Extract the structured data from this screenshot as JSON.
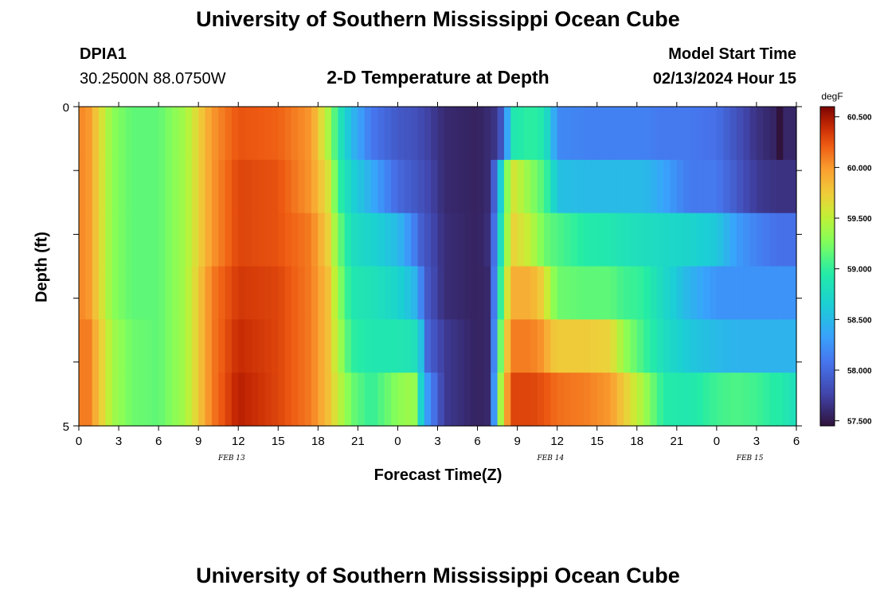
{
  "header": {
    "title_top": "University of Southern Mississippi Ocean Cube",
    "title_bottom": "University of Southern Mississippi Ocean Cube",
    "station_id": "DPIA1",
    "station_coords": "30.2500N  88.0750W",
    "chart_title": "2-D Temperature at Depth",
    "model_start_label": "Model Start Time",
    "model_start_value": "02/13/2024 Hour 15"
  },
  "chart_data": {
    "type": "heatmap",
    "title": "2-D Temperature at Depth",
    "xlabel": "Forecast Time(Z)",
    "ylabel": "Depth (ft)",
    "x_hours_range": [
      0,
      54
    ],
    "y_range": [
      0,
      5
    ],
    "y_ticks": [
      "0",
      "5"
    ],
    "x_tick_labels": [
      "0",
      "3",
      "6",
      "9",
      "12",
      "15",
      "18",
      "21",
      "0",
      "3",
      "6",
      "9",
      "12",
      "15",
      "18",
      "21",
      "0",
      "3",
      "6"
    ],
    "date_labels": [
      {
        "text": "FEB 13",
        "hour": 11.5
      },
      {
        "text": "FEB 14",
        "hour": 35.5
      },
      {
        "text": "FEB 15",
        "hour": 50.5
      }
    ],
    "colorbar": {
      "unit": "degF",
      "min": 57.45,
      "max": 60.6,
      "tick_labels": [
        "60.500",
        "60.000",
        "59.500",
        "59.000",
        "58.500",
        "58.000",
        "57.500"
      ],
      "tick_values": [
        60.5,
        60.0,
        59.5,
        59.0,
        58.5,
        58.0,
        57.5
      ]
    },
    "depth_bands": 6,
    "time_keys": [
      {
        "hour": 0,
        "t": [
          60.0,
          60.0,
          60.0,
          60.0,
          60.0,
          60.0
        ]
      },
      {
        "hour": 0.5,
        "t": [
          60.1,
          60.1,
          60.1,
          60.1,
          60.2,
          60.2
        ]
      },
      {
        "hour": 1.5,
        "t": [
          59.7,
          59.7,
          59.7,
          59.7,
          59.8,
          59.8
        ]
      },
      {
        "hour": 2.5,
        "t": [
          59.3,
          59.3,
          59.3,
          59.3,
          59.4,
          59.4
        ]
      },
      {
        "hour": 4,
        "t": [
          59.15,
          59.15,
          59.15,
          59.15,
          59.2,
          59.2
        ]
      },
      {
        "hour": 6,
        "t": [
          59.15,
          59.15,
          59.15,
          59.15,
          59.15,
          59.15
        ]
      },
      {
        "hour": 8,
        "t": [
          59.4,
          59.4,
          59.4,
          59.4,
          59.4,
          59.4
        ]
      },
      {
        "hour": 10,
        "t": [
          60.0,
          60.0,
          60.0,
          60.1,
          60.1,
          60.1
        ]
      },
      {
        "hour": 12,
        "t": [
          60.25,
          60.3,
          60.3,
          60.35,
          60.4,
          60.45
        ]
      },
      {
        "hour": 15,
        "t": [
          60.2,
          60.25,
          60.25,
          60.3,
          60.3,
          60.3
        ]
      },
      {
        "hour": 17.5,
        "t": [
          60.0,
          60.0,
          60.1,
          60.1,
          60.1,
          60.1
        ]
      },
      {
        "hour": 18.8,
        "t": [
          59.4,
          59.6,
          59.7,
          59.8,
          59.8,
          59.8
        ]
      },
      {
        "hour": 19.6,
        "t": [
          58.9,
          59.0,
          59.2,
          59.3,
          59.4,
          59.5
        ]
      },
      {
        "hour": 20.5,
        "t": [
          58.5,
          58.7,
          58.8,
          58.9,
          59.0,
          59.2
        ]
      },
      {
        "hour": 22,
        "t": [
          58.1,
          58.4,
          58.7,
          58.85,
          58.9,
          59.0
        ]
      },
      {
        "hour": 24,
        "t": [
          57.9,
          58.0,
          58.5,
          58.7,
          58.9,
          59.3
        ]
      },
      {
        "hour": 25.2,
        "t": [
          57.85,
          57.9,
          58.15,
          58.5,
          58.85,
          59.4
        ]
      },
      {
        "hour": 25.7,
        "t": [
          57.8,
          57.85,
          57.95,
          58.2,
          58.6,
          58.75
        ]
      },
      {
        "hour": 26.2,
        "t": [
          57.75,
          57.8,
          57.85,
          57.9,
          58.0,
          58.3
        ]
      },
      {
        "hour": 27.5,
        "t": [
          57.6,
          57.6,
          57.62,
          57.62,
          57.7,
          57.7
        ]
      },
      {
        "hour": 30,
        "t": [
          57.55,
          57.55,
          57.55,
          57.55,
          57.55,
          57.55
        ]
      },
      {
        "hour": 31,
        "t": [
          57.62,
          57.62,
          57.65,
          57.6,
          57.6,
          57.6
        ]
      },
      {
        "hour": 31.6,
        "t": [
          57.7,
          58.4,
          58.6,
          58.8,
          59.0,
          59.2
        ]
      },
      {
        "hour": 32.1,
        "t": [
          58.2,
          59.2,
          59.3,
          59.5,
          59.7,
          59.9
        ]
      },
      {
        "hour": 32.7,
        "t": [
          58.9,
          59.6,
          59.7,
          59.9,
          60.1,
          60.3
        ]
      },
      {
        "hour": 34,
        "t": [
          59.0,
          59.3,
          59.5,
          59.9,
          60.1,
          60.3
        ]
      },
      {
        "hour": 35,
        "t": [
          58.9,
          59.1,
          59.2,
          59.7,
          60.0,
          60.25
        ]
      },
      {
        "hour": 35.5,
        "t": [
          58.6,
          58.9,
          59.15,
          59.4,
          59.8,
          60.2
        ]
      },
      {
        "hour": 36,
        "t": [
          58.2,
          58.55,
          59.1,
          59.2,
          59.75,
          60.15
        ]
      },
      {
        "hour": 38,
        "t": [
          58.15,
          58.5,
          58.95,
          59.15,
          59.75,
          60.1
        ]
      },
      {
        "hour": 40,
        "t": [
          58.15,
          58.5,
          58.9,
          59.15,
          59.7,
          60.0
        ]
      },
      {
        "hour": 41,
        "t": [
          58.15,
          58.5,
          58.85,
          59.05,
          59.35,
          59.75
        ]
      },
      {
        "hour": 42.5,
        "t": [
          58.15,
          58.5,
          58.8,
          59.0,
          59.05,
          59.4
        ]
      },
      {
        "hour": 44,
        "t": [
          58.1,
          58.35,
          58.75,
          58.75,
          58.8,
          58.95
        ]
      },
      {
        "hour": 46,
        "t": [
          58.1,
          58.1,
          58.7,
          58.45,
          58.6,
          58.9
        ]
      },
      {
        "hour": 48,
        "t": [
          58.05,
          58.1,
          58.6,
          58.25,
          58.5,
          59.05
        ]
      },
      {
        "hour": 49.5,
        "t": [
          57.85,
          57.9,
          58.3,
          58.25,
          58.45,
          59.1
        ]
      },
      {
        "hour": 51,
        "t": [
          57.65,
          57.7,
          58.15,
          58.25,
          58.45,
          59.05
        ]
      },
      {
        "hour": 52.5,
        "t": [
          57.55,
          57.65,
          58.05,
          58.25,
          58.45,
          58.95
        ]
      },
      {
        "hour": 52.6,
        "t": [
          57.45,
          57.65,
          58.05,
          58.25,
          58.45,
          58.95
        ]
      },
      {
        "hour": 53.0,
        "t": [
          57.45,
          57.65,
          58.05,
          58.25,
          58.45,
          58.95
        ]
      },
      {
        "hour": 53.1,
        "t": [
          57.58,
          57.65,
          58.05,
          58.25,
          58.45,
          58.9
        ]
      },
      {
        "hour": 54,
        "t": [
          57.58,
          57.65,
          58.05,
          58.25,
          58.45,
          58.8
        ]
      }
    ]
  }
}
